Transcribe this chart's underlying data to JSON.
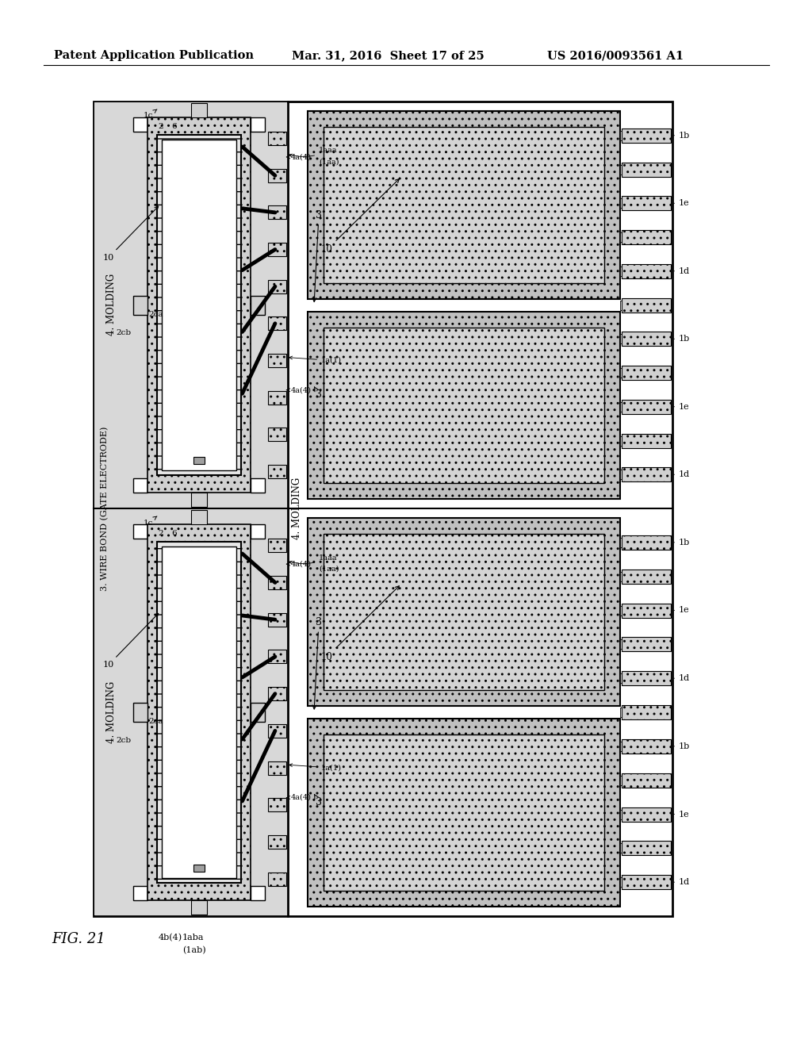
{
  "header_left": "Patent Application Publication",
  "header_mid": "Mar. 31, 2016  Sheet 17 of 25",
  "header_right": "US 2016/0093561 A1",
  "fig_label": "FIG. 21",
  "panel_left_label": "3. WIRE BOND (GATE ELECTRODE)",
  "panel_right_label": "4. MOLDING",
  "bg": "#ffffff",
  "gray_dot": "#d0d0d0",
  "gray_mold": "#b8b8b8",
  "gray_lead": "#c4c4c4",
  "gray_die": "#c0c0c0",
  "white": "#ffffff",
  "black": "#000000"
}
